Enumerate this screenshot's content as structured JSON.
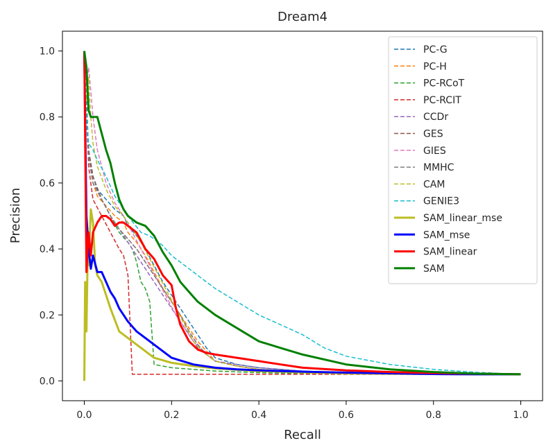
{
  "chart_data": {
    "type": "line",
    "title": "Dream4",
    "xlabel": "Recall",
    "ylabel": "Precision",
    "xlim": [
      -0.05,
      1.05
    ],
    "ylim": [
      -0.06,
      1.06
    ],
    "xticks": [
      0.0,
      0.2,
      0.4,
      0.6,
      0.8,
      1.0
    ],
    "xtick_labels": [
      "0.0",
      "0.2",
      "0.4",
      "0.6",
      "0.8",
      "1.0"
    ],
    "yticks": [
      0.0,
      0.2,
      0.4,
      0.6,
      0.8,
      1.0
    ],
    "ytick_labels": [
      "0.0",
      "0.2",
      "0.4",
      "0.6",
      "0.8",
      "1.0"
    ],
    "grid": false,
    "legend_position": "top-right",
    "series": [
      {
        "name": "PC-G",
        "color": "#1f77b4",
        "style": "dashed",
        "x": [
          0,
          0.005,
          0.01,
          0.02,
          0.03,
          0.05,
          0.07,
          0.09,
          0.1,
          0.12,
          0.14,
          0.16,
          0.18,
          0.2,
          0.22,
          0.24,
          0.26,
          0.28,
          0.3,
          0.35,
          0.4,
          0.5,
          0.6,
          0.7,
          0.8,
          0.9,
          1.0
        ],
        "y": [
          1.0,
          0.85,
          0.7,
          0.62,
          0.58,
          0.55,
          0.52,
          0.5,
          0.47,
          0.44,
          0.4,
          0.35,
          0.3,
          0.26,
          0.22,
          0.18,
          0.14,
          0.1,
          0.07,
          0.05,
          0.04,
          0.03,
          0.025,
          0.022,
          0.021,
          0.02,
          0.02
        ]
      },
      {
        "name": "PC-H",
        "color": "#ff7f0e",
        "style": "dashed",
        "x": [
          0,
          0.005,
          0.01,
          0.02,
          0.03,
          0.05,
          0.07,
          0.09,
          0.1,
          0.12,
          0.14,
          0.16,
          0.18,
          0.2,
          0.22,
          0.24,
          0.26,
          0.28,
          0.3,
          0.35,
          0.4,
          0.5,
          0.6,
          0.7,
          0.8,
          0.9,
          1.0
        ],
        "y": [
          1.0,
          0.83,
          0.7,
          0.6,
          0.56,
          0.53,
          0.5,
          0.48,
          0.45,
          0.42,
          0.38,
          0.33,
          0.28,
          0.24,
          0.2,
          0.16,
          0.12,
          0.09,
          0.06,
          0.045,
          0.035,
          0.028,
          0.024,
          0.022,
          0.021,
          0.02,
          0.02
        ]
      },
      {
        "name": "PC-RCoT",
        "color": "#2ca02c",
        "style": "dashed",
        "x": [
          0,
          0.005,
          0.01,
          0.02,
          0.04,
          0.06,
          0.08,
          0.1,
          0.11,
          0.12,
          0.13,
          0.14,
          0.15,
          0.16,
          0.2,
          0.3,
          0.4,
          0.5,
          0.6,
          0.7,
          0.8,
          0.9,
          1.0
        ],
        "y": [
          1.0,
          0.85,
          0.7,
          0.6,
          0.55,
          0.5,
          0.45,
          0.42,
          0.4,
          0.36,
          0.3,
          0.28,
          0.24,
          0.05,
          0.04,
          0.03,
          0.025,
          0.022,
          0.021,
          0.02,
          0.02,
          0.02,
          0.02
        ]
      },
      {
        "name": "PC-RCIT",
        "color": "#d62728",
        "style": "dashed",
        "x": [
          0,
          0.005,
          0.01,
          0.02,
          0.04,
          0.06,
          0.08,
          0.09,
          0.1,
          0.11,
          0.2,
          0.3,
          0.38,
          0.5,
          0.6,
          0.7,
          0.8,
          0.9,
          1.0
        ],
        "y": [
          1.0,
          0.8,
          0.65,
          0.55,
          0.5,
          0.45,
          0.4,
          0.38,
          0.32,
          0.02,
          0.02,
          0.02,
          0.02,
          0.02,
          0.02,
          0.02,
          0.02,
          0.02,
          0.02
        ]
      },
      {
        "name": "CCDr",
        "color": "#9467bd",
        "style": "dashed",
        "x": [
          0,
          0.005,
          0.01,
          0.02,
          0.04,
          0.06,
          0.08,
          0.1,
          0.12,
          0.14,
          0.16,
          0.18,
          0.2,
          0.22,
          0.24,
          0.26,
          0.28,
          0.3,
          0.35,
          0.4,
          0.5,
          0.6,
          0.7,
          0.8,
          0.9,
          1.0
        ],
        "y": [
          1.0,
          0.8,
          0.68,
          0.6,
          0.55,
          0.5,
          0.46,
          0.42,
          0.38,
          0.34,
          0.3,
          0.26,
          0.22,
          0.18,
          0.14,
          0.1,
          0.08,
          0.06,
          0.05,
          0.04,
          0.03,
          0.025,
          0.022,
          0.021,
          0.02,
          0.02
        ]
      },
      {
        "name": "GES",
        "color": "#8c564b",
        "style": "dashed",
        "x": [
          0,
          0.005,
          0.01,
          0.02,
          0.04,
          0.06,
          0.08,
          0.1,
          0.12,
          0.14,
          0.16,
          0.18,
          0.2,
          0.22,
          0.24,
          0.26,
          0.28,
          0.3,
          0.35,
          0.4,
          0.5,
          0.6,
          0.7,
          0.8,
          0.9,
          1.0
        ],
        "y": [
          1.0,
          0.82,
          0.7,
          0.62,
          0.55,
          0.5,
          0.46,
          0.43,
          0.4,
          0.36,
          0.32,
          0.28,
          0.24,
          0.2,
          0.15,
          0.11,
          0.08,
          0.06,
          0.045,
          0.035,
          0.028,
          0.024,
          0.022,
          0.021,
          0.02,
          0.02
        ]
      },
      {
        "name": "GIES",
        "color": "#e377c2",
        "style": "dashed",
        "x": [
          0,
          0.005,
          0.01,
          0.015,
          0.02,
          0.03,
          0.05,
          0.07,
          0.09,
          0.11,
          0.13,
          0.15,
          0.17,
          0.19,
          0.21,
          0.23,
          0.25,
          0.27,
          0.3,
          0.35,
          0.4,
          0.5,
          0.6,
          0.7,
          0.8,
          0.9,
          1.0
        ],
        "y": [
          1.0,
          0.9,
          0.95,
          0.88,
          0.8,
          0.7,
          0.6,
          0.54,
          0.5,
          0.45,
          0.4,
          0.35,
          0.3,
          0.25,
          0.2,
          0.16,
          0.12,
          0.09,
          0.06,
          0.045,
          0.035,
          0.028,
          0.024,
          0.022,
          0.021,
          0.02,
          0.02
        ]
      },
      {
        "name": "MMHC",
        "color": "#7f7f7f",
        "style": "dashed",
        "x": [
          0,
          0.005,
          0.01,
          0.02,
          0.04,
          0.06,
          0.08,
          0.1,
          0.12,
          0.14,
          0.16,
          0.18,
          0.2,
          0.22,
          0.24,
          0.26,
          0.28,
          0.3,
          0.35,
          0.4,
          0.5,
          0.6,
          0.7,
          0.8,
          0.9,
          1.0
        ],
        "y": [
          1.0,
          0.8,
          0.68,
          0.6,
          0.55,
          0.5,
          0.46,
          0.43,
          0.4,
          0.36,
          0.32,
          0.28,
          0.24,
          0.2,
          0.15,
          0.11,
          0.08,
          0.06,
          0.045,
          0.035,
          0.028,
          0.024,
          0.022,
          0.021,
          0.02,
          0.02
        ]
      },
      {
        "name": "CAM",
        "color": "#bcbd22",
        "style": "dashed",
        "x": [
          0,
          0.005,
          0.01,
          0.015,
          0.02,
          0.03,
          0.05,
          0.07,
          0.09,
          0.11,
          0.13,
          0.15,
          0.17,
          0.19,
          0.21,
          0.23,
          0.25,
          0.27,
          0.3,
          0.35,
          0.4,
          0.5,
          0.6,
          0.7,
          0.8,
          0.9,
          1.0
        ],
        "y": [
          1.0,
          0.85,
          0.92,
          0.8,
          0.72,
          0.65,
          0.58,
          0.53,
          0.5,
          0.46,
          0.42,
          0.37,
          0.32,
          0.27,
          0.22,
          0.17,
          0.12,
          0.09,
          0.06,
          0.045,
          0.035,
          0.028,
          0.024,
          0.022,
          0.021,
          0.02,
          0.02
        ]
      },
      {
        "name": "GENIE3",
        "color": "#17becf",
        "style": "dashed",
        "x": [
          0,
          0.005,
          0.01,
          0.02,
          0.03,
          0.05,
          0.07,
          0.1,
          0.13,
          0.15,
          0.18,
          0.2,
          0.22,
          0.25,
          0.28,
          0.3,
          0.35,
          0.4,
          0.45,
          0.5,
          0.55,
          0.6,
          0.7,
          0.8,
          0.9,
          1.0
        ],
        "y": [
          1.0,
          0.8,
          0.72,
          0.7,
          0.67,
          0.62,
          0.56,
          0.5,
          0.45,
          0.44,
          0.41,
          0.38,
          0.36,
          0.33,
          0.3,
          0.28,
          0.24,
          0.2,
          0.17,
          0.14,
          0.1,
          0.075,
          0.05,
          0.035,
          0.026,
          0.02
        ]
      },
      {
        "name": "SAM_linear_mse",
        "color": "#bcbd22",
        "style": "solid",
        "x": [
          0,
          0.002,
          0.005,
          0.008,
          0.01,
          0.015,
          0.02,
          0.025,
          0.03,
          0.04,
          0.05,
          0.06,
          0.08,
          0.1,
          0.12,
          0.14,
          0.16,
          0.2,
          0.25,
          0.3,
          0.4,
          0.5,
          0.6,
          0.7,
          0.8,
          0.9,
          1.0
        ],
        "y": [
          0.0,
          0.3,
          0.15,
          0.4,
          0.35,
          0.52,
          0.48,
          0.35,
          0.32,
          0.3,
          0.26,
          0.22,
          0.15,
          0.13,
          0.11,
          0.09,
          0.07,
          0.055,
          0.045,
          0.038,
          0.03,
          0.026,
          0.023,
          0.022,
          0.021,
          0.02,
          0.02
        ]
      },
      {
        "name": "SAM_mse",
        "color": "#0000ff",
        "style": "solid",
        "x": [
          0,
          0.003,
          0.005,
          0.01,
          0.015,
          0.02,
          0.03,
          0.04,
          0.05,
          0.06,
          0.07,
          0.08,
          0.1,
          0.12,
          0.14,
          0.16,
          0.2,
          0.25,
          0.3,
          0.35,
          0.4,
          0.5,
          0.6,
          0.7,
          0.8,
          0.9,
          1.0
        ],
        "y": [
          1.0,
          0.7,
          0.5,
          0.4,
          0.34,
          0.38,
          0.33,
          0.33,
          0.3,
          0.27,
          0.25,
          0.22,
          0.18,
          0.15,
          0.13,
          0.11,
          0.07,
          0.05,
          0.04,
          0.035,
          0.032,
          0.028,
          0.025,
          0.023,
          0.021,
          0.02,
          0.02
        ]
      },
      {
        "name": "SAM_linear",
        "color": "#ff0000",
        "style": "solid",
        "x": [
          0,
          0.005,
          0.01,
          0.015,
          0.02,
          0.03,
          0.04,
          0.05,
          0.06,
          0.07,
          0.08,
          0.09,
          0.1,
          0.12,
          0.14,
          0.16,
          0.18,
          0.2,
          0.21,
          0.22,
          0.24,
          0.26,
          0.28,
          0.3,
          0.35,
          0.4,
          0.45,
          0.5,
          0.6,
          0.7,
          0.8,
          0.9,
          1.0
        ],
        "y": [
          1.0,
          0.33,
          0.45,
          0.38,
          0.45,
          0.48,
          0.5,
          0.5,
          0.49,
          0.47,
          0.48,
          0.48,
          0.47,
          0.45,
          0.4,
          0.37,
          0.32,
          0.29,
          0.22,
          0.17,
          0.12,
          0.095,
          0.085,
          0.08,
          0.07,
          0.06,
          0.05,
          0.04,
          0.032,
          0.027,
          0.024,
          0.022,
          0.02
        ]
      },
      {
        "name": "SAM",
        "color": "#008000",
        "style": "solid",
        "x": [
          0,
          0.005,
          0.01,
          0.015,
          0.02,
          0.03,
          0.04,
          0.05,
          0.06,
          0.07,
          0.08,
          0.09,
          0.1,
          0.12,
          0.14,
          0.16,
          0.18,
          0.2,
          0.22,
          0.24,
          0.26,
          0.3,
          0.35,
          0.4,
          0.45,
          0.5,
          0.6,
          0.7,
          0.8,
          0.9,
          1.0
        ],
        "y": [
          1.0,
          0.95,
          0.82,
          0.8,
          0.8,
          0.8,
          0.75,
          0.7,
          0.66,
          0.6,
          0.55,
          0.52,
          0.5,
          0.48,
          0.47,
          0.44,
          0.39,
          0.35,
          0.3,
          0.27,
          0.24,
          0.2,
          0.16,
          0.12,
          0.1,
          0.08,
          0.05,
          0.035,
          0.027,
          0.022,
          0.02
        ]
      }
    ]
  }
}
